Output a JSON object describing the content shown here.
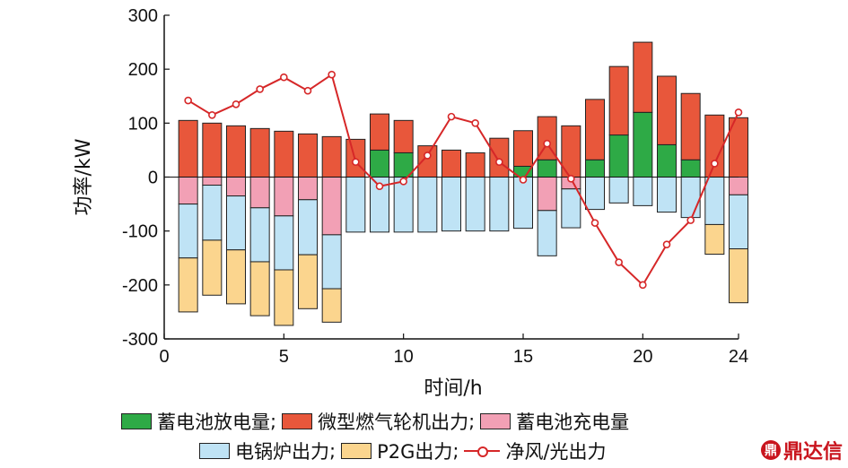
{
  "chart_data": {
    "type": "bar",
    "stacked": true,
    "x": [
      1,
      2,
      3,
      4,
      5,
      6,
      7,
      8,
      9,
      10,
      11,
      12,
      13,
      14,
      15,
      16,
      17,
      18,
      19,
      20,
      21,
      22,
      23,
      24
    ],
    "xlabel": "时间/h",
    "ylabel": "功率/kW",
    "xlim": [
      0,
      24
    ],
    "ylim": [
      -300,
      300
    ],
    "xticks": [
      0,
      5,
      10,
      15,
      20,
      24
    ],
    "yticks": [
      300,
      200,
      100,
      0,
      -100,
      -200,
      -300
    ],
    "series": [
      {
        "name": "蓄电池放电量",
        "color": "#2eaa46",
        "values": [
          0,
          0,
          0,
          0,
          0,
          0,
          0,
          0,
          50,
          45,
          0,
          0,
          0,
          0,
          20,
          32,
          0,
          32,
          78,
          120,
          60,
          32,
          0,
          0
        ]
      },
      {
        "name": "微型燃气轮机出力",
        "color": "#e8573b",
        "values": [
          105,
          100,
          95,
          90,
          85,
          80,
          75,
          70,
          67,
          60,
          58,
          50,
          45,
          72,
          66,
          80,
          95,
          112,
          127,
          130,
          127,
          123,
          115,
          110
        ]
      },
      {
        "name": "蓄电池充电量",
        "color": "#f2a0b5",
        "values": [
          -50,
          -15,
          -35,
          -57,
          -72,
          -42,
          -107,
          0,
          0,
          0,
          0,
          0,
          0,
          0,
          0,
          -62,
          -22,
          0,
          0,
          0,
          0,
          0,
          0,
          -33
        ]
      },
      {
        "name": "电锅炉出力",
        "color": "#bfe3f5",
        "values": [
          -100,
          -102,
          -100,
          -100,
          -100,
          -102,
          -100,
          -102,
          -102,
          -102,
          -102,
          -100,
          -100,
          -100,
          -95,
          -84,
          -72,
          -60,
          -48,
          -53,
          -65,
          -75,
          -88,
          -100
        ]
      },
      {
        "name": "P2G出力",
        "color": "#fbd58e",
        "values": [
          -100,
          -102,
          -100,
          -100,
          -103,
          -100,
          -62,
          0,
          0,
          0,
          0,
          0,
          0,
          0,
          0,
          0,
          0,
          0,
          0,
          0,
          0,
          0,
          -55,
          -100
        ]
      }
    ],
    "line_series": {
      "name": "净风/光出力",
      "color": "#d62728",
      "values": [
        142,
        115,
        135,
        163,
        185,
        160,
        190,
        28,
        -17,
        -8,
        40,
        112,
        100,
        28,
        -5,
        62,
        -3,
        -85,
        -158,
        -200,
        -125,
        -80,
        25,
        120
      ]
    }
  },
  "legend": {
    "row1": [
      {
        "label": "蓄电池放电量",
        "sep": ";",
        "color": "#2eaa46"
      },
      {
        "label": "微型燃气轮机出力",
        "sep": ";",
        "color": "#e8573b"
      },
      {
        "label": "蓄电池充电量",
        "sep": "",
        "color": "#f2a0b5"
      }
    ],
    "row2": [
      {
        "label": "电锅炉出力",
        "sep": ";",
        "color": "#bfe3f5"
      },
      {
        "label": "P2G出力",
        "sep": ";",
        "color": "#fbd58e"
      },
      {
        "label": "净风/光出力",
        "sep": "",
        "color": "#d62728"
      }
    ]
  },
  "watermark": {
    "mark": "鼎",
    "text": "鼎达信"
  }
}
